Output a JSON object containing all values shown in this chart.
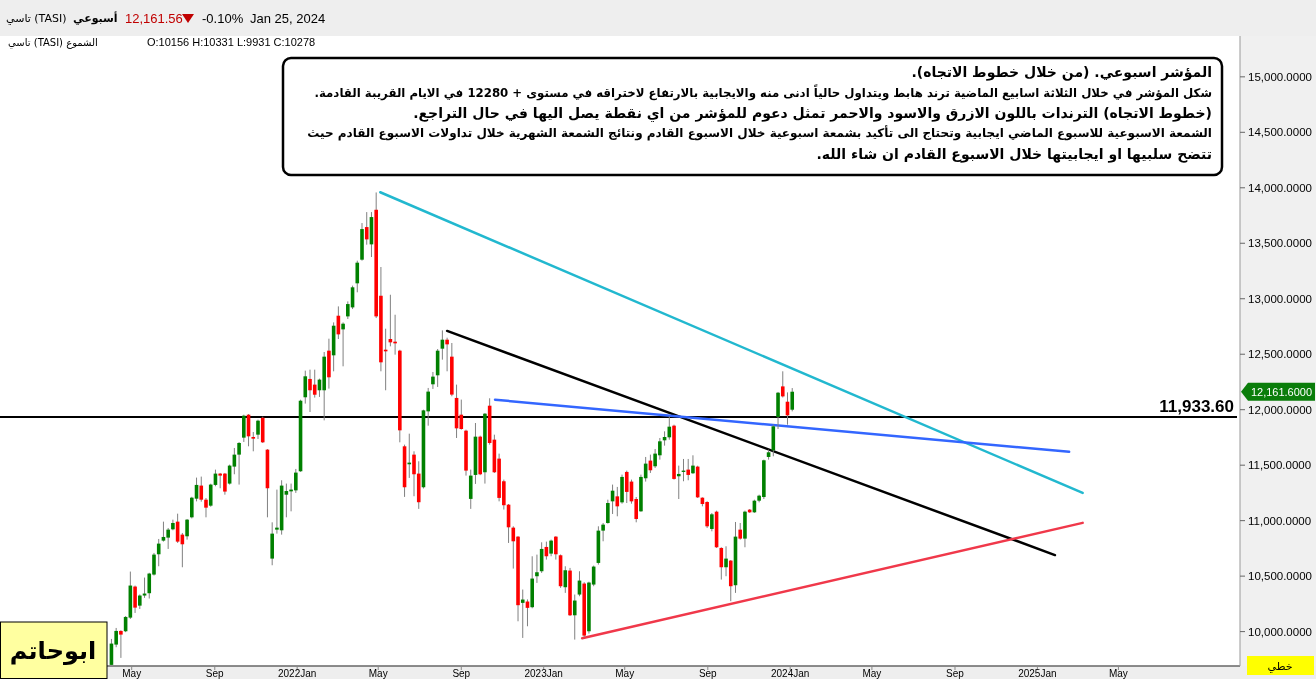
{
  "chart_data": {
    "type": "candlestick",
    "xlim": [
      "2020-10-18",
      "2025-10-28"
    ],
    "ylim": [
      9690,
      15350
    ],
    "xticks": [
      {
        "value": "2021-05-01",
        "label": "May"
      },
      {
        "value": "2021-09-01",
        "label": "Sep"
      },
      {
        "value": "2022-01-01",
        "label": "2022Jan"
      },
      {
        "value": "2022-05-01",
        "label": "May"
      },
      {
        "value": "2022-09-01",
        "label": "Sep"
      },
      {
        "value": "2023-01-01",
        "label": "2023Jan"
      },
      {
        "value": "2023-05-01",
        "label": "May"
      },
      {
        "value": "2023-09-01",
        "label": "Sep"
      },
      {
        "value": "2024-01-01",
        "label": "2024Jan"
      },
      {
        "value": "2024-05-01",
        "label": "May"
      },
      {
        "value": "2024-09-01",
        "label": "Sep"
      },
      {
        "value": "2025-01-01",
        "label": "2025Jan"
      },
      {
        "value": "2025-05-01",
        "label": "May"
      }
    ],
    "yticks": [
      {
        "value": 10000,
        "label": "10,000.0000"
      },
      {
        "value": 10500,
        "label": "10,500.0000"
      },
      {
        "value": 11000,
        "label": "11,000.0000"
      },
      {
        "value": 11500,
        "label": "11,500.0000"
      },
      {
        "value": 12000,
        "label": "12,000.0000"
      },
      {
        "value": 12500,
        "label": "12,500.0000"
      },
      {
        "value": 13000,
        "label": "13,000.0000"
      },
      {
        "value": 13500,
        "label": "13,500.0000"
      },
      {
        "value": 14000,
        "label": "14,000.0000"
      },
      {
        "value": 14500,
        "label": "14,500.0000"
      },
      {
        "value": 15000,
        "label": "15,000.0000"
      }
    ],
    "series": [
      {
        "x": [
          "2021-04-01",
          "2021-04-08",
          "2021-04-15",
          "2021-04-22",
          "2021-04-29",
          "2021-05-06",
          "2021-05-13",
          "2021-05-20",
          "2021-05-27",
          "2021-06-03",
          "2021-06-10",
          "2021-06-17",
          "2021-06-24",
          "2021-07-01",
          "2021-07-08",
          "2021-07-15",
          "2021-07-22",
          "2021-07-29",
          "2021-08-05",
          "2021-08-12",
          "2021-08-19",
          "2021-08-26",
          "2021-09-02",
          "2021-09-09",
          "2021-09-16",
          "2021-09-23",
          "2021-09-30",
          "2021-10-07",
          "2021-10-14",
          "2021-10-21",
          "2021-10-28",
          "2021-11-04",
          "2021-11-11",
          "2021-11-18",
          "2021-11-25",
          "2021-12-02",
          "2021-12-09",
          "2021-12-16",
          "2021-12-23",
          "2021-12-30",
          "2022-01-06",
          "2022-01-13",
          "2022-01-20",
          "2022-01-27",
          "2022-02-03",
          "2022-02-10",
          "2022-02-17",
          "2022-02-24",
          "2022-03-03",
          "2022-03-10",
          "2022-03-17",
          "2022-03-24",
          "2022-03-31",
          "2022-04-07",
          "2022-04-14",
          "2022-04-21",
          "2022-04-28",
          "2022-05-05",
          "2022-05-12",
          "2022-05-19",
          "2022-05-26",
          "2022-06-02",
          "2022-06-09",
          "2022-06-16",
          "2022-06-23",
          "2022-06-30",
          "2022-07-07",
          "2022-07-14",
          "2022-07-21",
          "2022-07-28",
          "2022-08-04",
          "2022-08-11",
          "2022-08-18",
          "2022-08-25",
          "2022-09-01",
          "2022-09-08",
          "2022-09-15",
          "2022-09-22",
          "2022-09-29",
          "2022-10-06",
          "2022-10-13",
          "2022-10-20",
          "2022-10-27",
          "2022-11-03",
          "2022-11-10",
          "2022-11-17",
          "2022-11-24",
          "2022-12-01",
          "2022-12-08",
          "2022-12-15",
          "2022-12-22",
          "2022-12-29",
          "2023-01-05",
          "2023-01-12",
          "2023-01-19",
          "2023-01-26",
          "2023-02-02",
          "2023-02-09",
          "2023-02-16",
          "2023-02-23",
          "2023-03-02",
          "2023-03-09",
          "2023-03-16",
          "2023-03-23",
          "2023-03-30",
          "2023-04-06",
          "2023-04-13",
          "2023-04-20",
          "2023-04-27",
          "2023-05-04",
          "2023-05-11",
          "2023-05-18",
          "2023-05-25",
          "2023-06-01",
          "2023-06-08",
          "2023-06-15",
          "2023-06-22",
          "2023-06-29",
          "2023-07-06",
          "2023-07-13",
          "2023-07-20",
          "2023-07-27",
          "2023-08-03",
          "2023-08-10",
          "2023-08-17",
          "2023-08-24",
          "2023-08-31",
          "2023-09-07",
          "2023-09-14",
          "2023-09-21",
          "2023-09-28",
          "2023-10-05",
          "2023-10-12",
          "2023-10-19",
          "2023-10-26",
          "2023-11-02",
          "2023-11-09",
          "2023-11-16",
          "2023-11-23",
          "2023-11-30",
          "2023-12-07",
          "2023-12-14",
          "2023-12-21",
          "2023-12-28",
          "2024-01-04"
        ],
        "ohlc": [
          [
            9700,
            9934,
            9700,
            9892
          ],
          [
            9883,
            10033,
            9859,
            10006
          ],
          [
            10006,
            10012,
            9763,
            9973
          ],
          [
            10003,
            10140,
            9995,
            10132
          ],
          [
            10126,
            10541,
            10114,
            10415
          ],
          [
            10406,
            10415,
            10168,
            10216
          ],
          [
            10234,
            10335,
            10204,
            10325
          ],
          [
            10325,
            10487,
            10304,
            10343
          ],
          [
            10346,
            10530,
            10298,
            10523
          ],
          [
            10514,
            10709,
            10505,
            10694
          ],
          [
            10697,
            10835,
            10589,
            10793
          ],
          [
            10820,
            10991,
            10811,
            10853
          ],
          [
            10847,
            10934,
            10745,
            10919
          ],
          [
            10922,
            11009,
            10913,
            10979
          ],
          [
            10991,
            11063,
            10799,
            10811
          ],
          [
            10874,
            10889,
            10580,
            10787
          ],
          [
            10859,
            11015,
            10829,
            11009
          ],
          [
            11030,
            11215,
            11020,
            11207
          ],
          [
            11198,
            11388,
            11174,
            11322
          ],
          [
            11316,
            11397,
            11171,
            11189
          ],
          [
            11189,
            11204,
            11030,
            11117
          ],
          [
            11135,
            11333,
            11125,
            11325
          ],
          [
            11322,
            11460,
            11310,
            11424
          ],
          [
            11424,
            11430,
            11292,
            11406
          ],
          [
            11424,
            11430,
            11234,
            11262
          ],
          [
            11334,
            11505,
            11325,
            11496
          ],
          [
            11487,
            11655,
            11418,
            11595
          ],
          [
            11595,
            11708,
            11325,
            11700
          ],
          [
            11748,
            11955,
            11709,
            11946
          ],
          [
            11955,
            11960,
            11670,
            11760
          ],
          [
            11754,
            11799,
            11625,
            11739
          ],
          [
            11775,
            11910,
            11736,
            11901
          ],
          [
            11928,
            11937,
            11700,
            11706
          ],
          [
            11640,
            11645,
            11030,
            11292
          ],
          [
            10658,
            10985,
            10598,
            10883
          ],
          [
            10919,
            11280,
            10883,
            10937
          ],
          [
            10913,
            11364,
            10874,
            11316
          ],
          [
            11234,
            11334,
            11030,
            11267
          ],
          [
            11264,
            11334,
            11084,
            11280
          ],
          [
            11273,
            11466,
            11250,
            11433
          ],
          [
            11445,
            12090,
            11440,
            12081
          ],
          [
            12112,
            12352,
            12055,
            12301
          ],
          [
            12277,
            12361,
            11979,
            12175
          ],
          [
            12226,
            12361,
            12109,
            12135
          ],
          [
            12175,
            12280,
            12115,
            12271
          ],
          [
            12175,
            12520,
            11904,
            12478
          ],
          [
            12532,
            12640,
            12190,
            12292
          ],
          [
            12490,
            12787,
            12346,
            12757
          ],
          [
            12847,
            12931,
            12637,
            12679
          ],
          [
            12724,
            12787,
            12391,
            12775
          ],
          [
            12841,
            12976,
            12817,
            12952
          ],
          [
            12922,
            13118,
            12907,
            13103
          ],
          [
            13139,
            13343,
            13058,
            13325
          ],
          [
            13352,
            13682,
            13343,
            13628
          ],
          [
            13646,
            13781,
            13487,
            13535
          ],
          [
            13490,
            13781,
            13376,
            13736
          ],
          [
            13802,
            13958,
            12826,
            12841
          ],
          [
            13027,
            13286,
            12346,
            12427
          ],
          [
            12541,
            12730,
            12175,
            12526
          ],
          [
            12637,
            13036,
            12571,
            12607
          ],
          [
            12613,
            12856,
            12496,
            12598
          ],
          [
            12532,
            12540,
            11706,
            11814
          ],
          [
            11670,
            11685,
            11214,
            11301
          ],
          [
            11508,
            11784,
            11385,
            11523
          ],
          [
            11595,
            11625,
            11220,
            11418
          ],
          [
            11424,
            11535,
            11106,
            11166
          ],
          [
            11301,
            12000,
            11290,
            11994
          ],
          [
            11985,
            12196,
            11856,
            12163
          ],
          [
            12229,
            12340,
            12187,
            12298
          ],
          [
            12310,
            12547,
            12205,
            12532
          ],
          [
            12550,
            12715,
            12451,
            12631
          ],
          [
            12631,
            12649,
            12346,
            12589
          ],
          [
            12478,
            12601,
            12121,
            12136
          ],
          [
            12106,
            12226,
            11745,
            11832
          ],
          [
            11955,
            12091,
            11820,
            11826
          ],
          [
            11811,
            11820,
            11406,
            11451
          ],
          [
            11196,
            11460,
            11106,
            11406
          ],
          [
            11412,
            11880,
            11331,
            11757
          ],
          [
            11757,
            11766,
            11410,
            11418
          ],
          [
            11436,
            11970,
            11334,
            11964
          ],
          [
            12036,
            12103,
            11685,
            11700
          ],
          [
            11730,
            11775,
            11430,
            11436
          ],
          [
            11559,
            11604,
            11174,
            11205
          ],
          [
            11355,
            11370,
            11100,
            11139
          ],
          [
            11144,
            11150,
            10799,
            10940
          ],
          [
            10937,
            10949,
            10568,
            10814
          ],
          [
            10856,
            10860,
            10093,
            10238
          ],
          [
            10259,
            10379,
            9943,
            10289
          ],
          [
            10271,
            10290,
            10048,
            10214
          ],
          [
            10220,
            10679,
            10210,
            10478
          ],
          [
            10499,
            10694,
            10439,
            10535
          ],
          [
            10544,
            10805,
            10529,
            10745
          ],
          [
            10763,
            10811,
            10649,
            10679
          ],
          [
            10703,
            10829,
            10679,
            10820
          ],
          [
            10856,
            10860,
            10649,
            10697
          ],
          [
            10688,
            10695,
            10394,
            10409
          ],
          [
            10400,
            10589,
            10349,
            10553
          ],
          [
            10550,
            10574,
            10140,
            10147
          ],
          [
            10147,
            10334,
            9928,
            10280
          ],
          [
            10334,
            10544,
            10319,
            10460
          ],
          [
            10433,
            10445,
            9952,
            9964
          ],
          [
            10003,
            10450,
            9982,
            10442
          ],
          [
            10424,
            10595,
            10409,
            10586
          ],
          [
            10619,
            10949,
            10604,
            10910
          ],
          [
            10910,
            10979,
            10814,
            10964
          ],
          [
            10979,
            11189,
            10973,
            11159
          ],
          [
            11174,
            11325,
            11060,
            11270
          ],
          [
            11219,
            11304,
            11039,
            11129
          ],
          [
            11165,
            11415,
            11153,
            11394
          ],
          [
            11439,
            11451,
            11159,
            11259
          ],
          [
            11352,
            11370,
            11153,
            11174
          ],
          [
            11195,
            11213,
            10985,
            11015
          ],
          [
            11084,
            11415,
            11080,
            11394
          ],
          [
            11382,
            11574,
            11352,
            11514
          ],
          [
            11541,
            11595,
            11430,
            11454
          ],
          [
            11490,
            11646,
            11475,
            11604
          ],
          [
            11589,
            11745,
            11550,
            11715
          ],
          [
            11724,
            11805,
            11676,
            11754
          ],
          [
            11751,
            11940,
            11730,
            11847
          ],
          [
            11856,
            11865,
            11370,
            11376
          ],
          [
            11400,
            11496,
            11195,
            11421
          ],
          [
            11439,
            11556,
            11355,
            11451
          ],
          [
            11460,
            11556,
            11364,
            11412
          ],
          [
            11427,
            11589,
            11421,
            11496
          ],
          [
            11487,
            11495,
            11204,
            11210
          ],
          [
            11207,
            11210,
            11129,
            11150
          ],
          [
            11168,
            11175,
            10934,
            10949
          ],
          [
            10925,
            11069,
            10904,
            11057
          ],
          [
            11081,
            11090,
            10754,
            10760
          ],
          [
            10754,
            10760,
            10469,
            10580
          ],
          [
            10580,
            10769,
            10499,
            10658
          ],
          [
            10640,
            10645,
            10274,
            10409
          ],
          [
            10418,
            10988,
            10349,
            10856
          ],
          [
            10919,
            10979,
            10829,
            10838
          ],
          [
            10838,
            11090,
            10760,
            11081
          ],
          [
            11099,
            11105,
            11070,
            11075
          ],
          [
            11075,
            11189,
            11070,
            11180
          ],
          [
            11180,
            11234,
            11165,
            11225
          ],
          [
            11213,
            11550,
            11195,
            11544
          ],
          [
            11574,
            11640,
            11550,
            11616
          ],
          [
            11634,
            11865,
            11580,
            11850
          ],
          [
            11934,
            12160,
            11826,
            12153
          ],
          [
            12210,
            12346,
            12110,
            12120
          ],
          [
            12072,
            12156,
            11865,
            11949
          ],
          [
            12000,
            12195,
            11985,
            12162
          ]
        ]
      },
      {
        "type": "line",
        "color": "#22b8cf",
        "x": [
          "2022-05-04",
          "2025-03-09"
        ],
        "values": [
          13960,
          11250
        ]
      },
      {
        "type": "line",
        "color": "#000000",
        "x": [
          "2022-08-11",
          "2025-01-27"
        ],
        "values": [
          12710,
          10690
        ]
      },
      {
        "type": "line",
        "color": "#3366ff",
        "x": [
          "2022-10-21",
          "2025-02-17"
        ],
        "values": [
          12090,
          11620
        ]
      },
      {
        "type": "line",
        "color": "#f0384a",
        "x": [
          "2023-02-27",
          "2025-03-09"
        ],
        "values": [
          9940,
          10980
        ]
      }
    ],
    "ref_lines": [
      {
        "axis": "y",
        "value": 11933.6,
        "label": "11,933.60",
        "color": "#000000"
      }
    ],
    "annotations": [
      "المؤشر اسبوعي. (من خلال خطوط الاتجاه).",
      "شكل المؤشر في خلال الثلاثة اسابيع الماضية ترند هابط ويتداول حالياً ادنى منه والايجابية بالارتفاع لاختراقه في مستوى + 12280 في الايام القريبة القادمة.",
      "(خطوط الاتجاه) الترندات باللون الازرق والاسود والاحمر تمثل دعوم للمؤشر من اي نقطة يصل اليها في حال التراجع.",
      "الشمعة الاسبوعية للاسبوع الماضي ايجابية وتحتاج الى تأكيد بشمعة اسبوعية خلال الاسبوع القادم ونتائج الشمعة الشهرية خلال تداولات الاسبوع القادم حيث",
      "تتضح سلبيها او ايجابيتها خلال الاسبوع القادم ان شاء الله.",
      "تاسي (TASI)",
      "أسبوعي",
      "12,161.56",
      "-0.10%",
      "Jan 25, 2024",
      "تاسي (TASI) الشموع",
      "O:10156 H:10331 L:9931 C:10278",
      "ابوحاتم",
      "خطي",
      "12,161.6000"
    ]
  }
}
